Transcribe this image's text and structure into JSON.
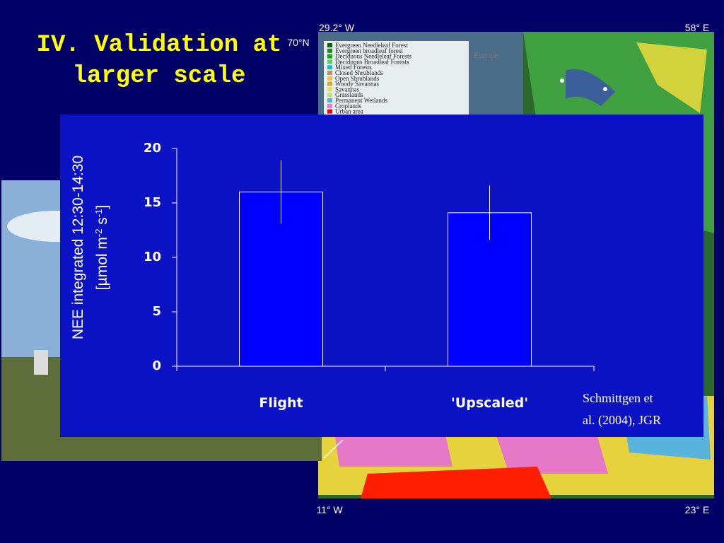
{
  "slide_title": [
    "IV. Validation at",
    "larger scale"
  ],
  "map": {
    "corner_labels": {
      "top_left": "29.2° W",
      "top_right": "58° E",
      "latitude": "70°N",
      "bottom_left": "11° W",
      "bottom_right": "23° E"
    },
    "region_label": "Europe",
    "legend": [
      {
        "label": "Evergreen Needleleaf Forest",
        "color": "#006b00"
      },
      {
        "label": "Evergreen broadleaf forest",
        "color": "#1e8c1e"
      },
      {
        "label": "Deciduous Needleleaf Forests",
        "color": "#00b400"
      },
      {
        "label": "Deciduous Broadleaf Forests",
        "color": "#5ad25a"
      },
      {
        "label": "Mixed Forests",
        "color": "#00c8c8"
      },
      {
        "label": "Closed Shrublands",
        "color": "#c88c5a"
      },
      {
        "label": "Open Shrublands",
        "color": "#e6c83c"
      },
      {
        "label": "Woody Savannas",
        "color": "#dcb400"
      },
      {
        "label": "Savannas",
        "color": "#f0dc50"
      },
      {
        "label": "Grasslands",
        "color": "#b4e682"
      },
      {
        "label": "Permanent Wetlands",
        "color": "#50b4dc"
      },
      {
        "label": "Croplands",
        "color": "#f078c8"
      },
      {
        "label": "Urban area",
        "color": "#ff0000"
      }
    ]
  },
  "citation": [
    "Schmittgen et",
    "al. (2004), JGR"
  ],
  "chart_data": {
    "type": "bar",
    "ylabel": "NEE integrated 12:30-14:30",
    "ylabel_unit": [
      "[µmol m",
      "-2",
      " s",
      "-1",
      "]"
    ],
    "categories": [
      "Flight",
      "'Upscaled'"
    ],
    "values": [
      16,
      14.1
    ],
    "errors": [
      2.9,
      2.5
    ],
    "color": "#0000ff",
    "ylim": [
      0,
      20
    ],
    "yticks": [
      0,
      5,
      10,
      15,
      20
    ]
  }
}
